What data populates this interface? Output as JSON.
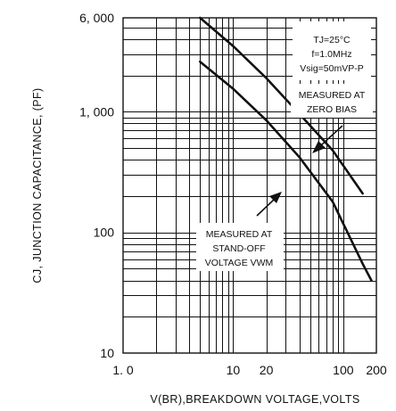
{
  "chart_data": {
    "type": "line",
    "x_scale": "log",
    "y_scale": "log",
    "xlim": [
      1,
      200
    ],
    "ylim": [
      10,
      6000
    ],
    "grid": true,
    "xlabel": "V(BR),BREAKDOWN VOLTAGE,VOLTS",
    "ylabel": "CJ, JUNCTION CAPACITANCE, (PF)",
    "x_ticks": [
      "1. 0",
      "10",
      "20",
      "100",
      "200"
    ],
    "x_tick_values": [
      1,
      10,
      20,
      100,
      200
    ],
    "y_ticks": [
      "6, 000",
      "1, 000",
      "100",
      "10"
    ],
    "y_tick_values": [
      6000,
      1000,
      100,
      10
    ],
    "conditions": [
      "TJ=25°C",
      "f=1.0MHz",
      "Vsig=50mVP-P"
    ],
    "series": [
      {
        "name": "MEASURED AT ZERO BIAS",
        "label_lines": [
          "MEASURED AT",
          "ZERO BIAS"
        ],
        "x": [
          5,
          10,
          20,
          40,
          80,
          150
        ],
        "y": [
          6000,
          3500,
          1900,
          960,
          480,
          210
        ]
      },
      {
        "name": "MEASURED AT STAND-OFF VOLTAGE VWM",
        "label_lines": [
          "MEASURED AT",
          "STAND-OFF",
          "VOLTAGE VWM"
        ],
        "x": [
          5,
          10,
          20,
          40,
          80,
          150,
          180
        ],
        "y": [
          2600,
          1550,
          850,
          420,
          180,
          55,
          40
        ]
      }
    ]
  }
}
